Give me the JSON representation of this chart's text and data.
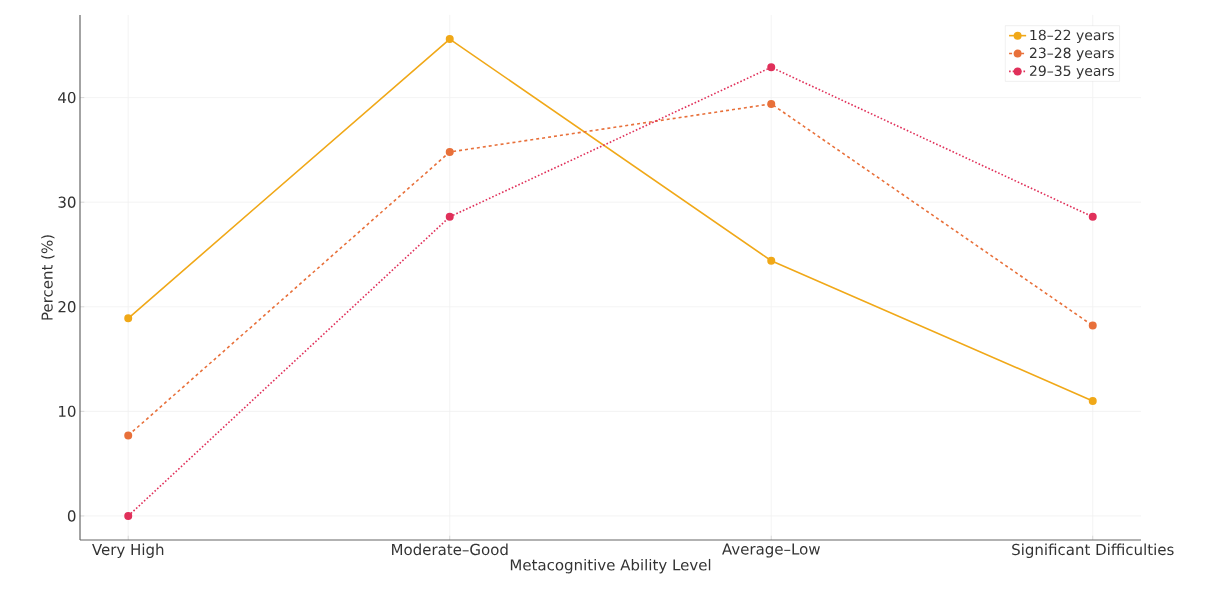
{
  "chart_data": {
    "type": "line",
    "xlabel": "Metacognitive Ability Level",
    "ylabel": "Percent (%)",
    "categories": [
      "Very High",
      "Moderate–Good",
      "Average–Low",
      "Significant Difficulties"
    ],
    "series": [
      {
        "name": "18–22 years",
        "color": "#f0a818",
        "values": [
          18.9,
          45.6,
          24.4,
          11.0
        ],
        "line_style": "solid"
      },
      {
        "name": "23–28 years",
        "color": "#e8703a",
        "values": [
          7.7,
          34.8,
          39.4,
          18.2
        ],
        "line_style": "dashed"
      },
      {
        "name": "29–35 years",
        "color": "#e0305a",
        "values": [
          0,
          28.6,
          42.9,
          28.6
        ],
        "line_style": "dotted"
      }
    ],
    "ylim": [
      -2.3,
      47.9
    ],
    "yticks": [
      0,
      10,
      20,
      30,
      40
    ],
    "grid": true,
    "legend": "top right",
    "marker": "circle"
  }
}
